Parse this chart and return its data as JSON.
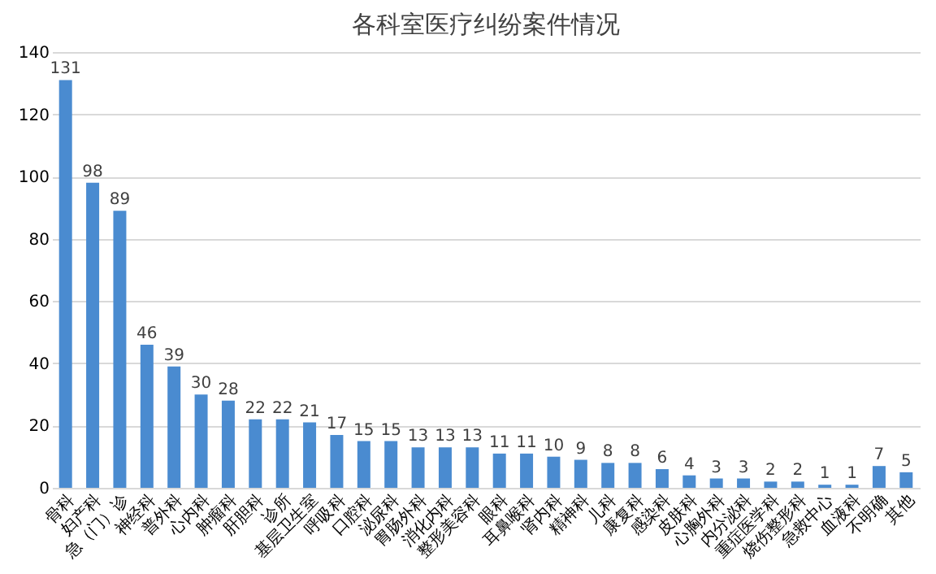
{
  "chart_data": {
    "type": "bar",
    "title": "各科室医疗纠纷案件情况",
    "categories": [
      "骨科",
      "妇产科",
      "急（门）诊",
      "神经科",
      "普外科",
      "心内科",
      "肿瘤科",
      "肝胆科",
      "诊所",
      "基层卫生室",
      "呼吸科",
      "口腔科",
      "泌尿科",
      "胃肠外科",
      "消化内科",
      "整形美容科",
      "眼科",
      "耳鼻喉科",
      "肾内科",
      "精神科",
      "儿科",
      "康复科",
      "感染科",
      "皮肤科",
      "心胸外科",
      "内分泌科",
      "重症医学科",
      "烧伤整形科",
      "急救中心",
      "血液科",
      "不明确",
      "其他"
    ],
    "values": [
      131,
      98,
      89,
      46,
      39,
      30,
      28,
      22,
      22,
      21,
      17,
      15,
      15,
      13,
      13,
      13,
      11,
      11,
      10,
      9,
      8,
      8,
      6,
      4,
      3,
      3,
      2,
      2,
      1,
      1,
      7,
      5
    ],
    "color": "#4a8bd0",
    "ylim": [
      0,
      140
    ],
    "yticks": [
      0,
      20,
      40,
      60,
      80,
      100,
      120,
      140
    ],
    "grid": "y",
    "data_labels": true
  }
}
